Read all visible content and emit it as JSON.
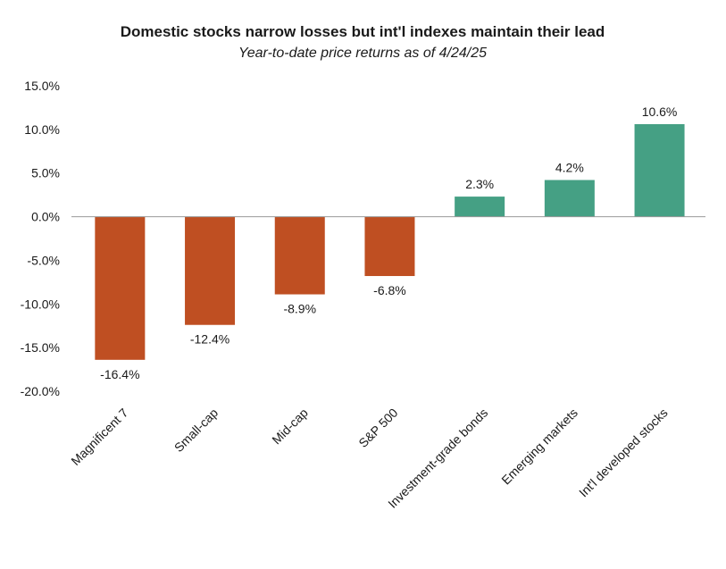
{
  "chart_data": {
    "type": "bar",
    "title": "Domestic stocks narrow losses but int'l indexes maintain their lead",
    "subtitle": "Year-to-date price returns as of 4/24/25",
    "categories": [
      "Magnificent 7",
      "Small-cap",
      "Mid-cap",
      "S&P 500",
      "Investment-grade bonds",
      "Emerging markets",
      "Int'l developed stocks"
    ],
    "values": [
      -16.4,
      -12.4,
      -8.9,
      -6.8,
      2.3,
      4.2,
      10.6
    ],
    "data_labels": [
      "-16.4%",
      "-12.4%",
      "-8.9%",
      "-6.8%",
      "2.3%",
      "4.2%",
      "10.6%"
    ],
    "ylim": [
      -20,
      15
    ],
    "yticks": [
      15,
      10,
      5,
      0,
      -5,
      -10,
      -15,
      -20
    ],
    "ytick_labels": [
      "15.0%",
      "10.0%",
      "5.0%",
      "0.0%",
      "-5.0%",
      "-10.0%",
      "-15.0%",
      "-20.0%"
    ],
    "xlabel": "",
    "ylabel": "",
    "grid": false,
    "colors": {
      "negative": "#bf4f22",
      "positive": "#45a084",
      "axis": "#999999"
    }
  }
}
